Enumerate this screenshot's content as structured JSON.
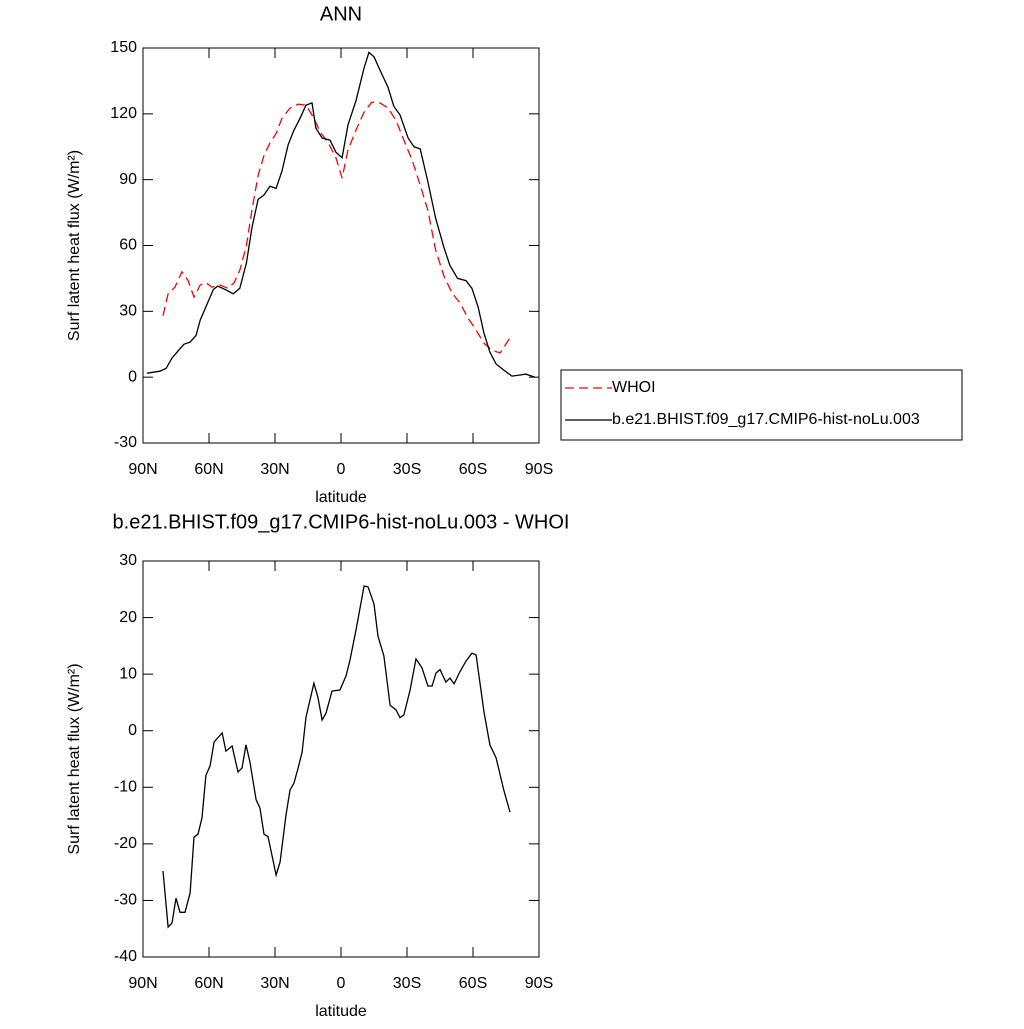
{
  "chart_data": [
    {
      "type": "line",
      "title": "ANN",
      "x_label": "latitude",
      "y_label": "Surf latent heat flux (W/m²)",
      "xlim": [
        90,
        -90
      ],
      "xticks": [
        {
          "value": 90,
          "label": "90N"
        },
        {
          "value": 60,
          "label": "60N"
        },
        {
          "value": 30,
          "label": "30N"
        },
        0,
        {
          "value": -30,
          "label": "30S"
        },
        {
          "value": -60,
          "label": "60S"
        },
        {
          "value": -90,
          "label": "90S"
        }
      ],
      "ylim": [
        -30,
        150
      ],
      "yticks": [
        -30,
        0,
        30,
        60,
        90,
        120,
        150
      ],
      "legend": "right",
      "series": [
        {
          "name": "WHOI",
          "color": "#ff0000",
          "dash": true,
          "x": [
            80.9,
            78.6,
            75.5,
            72.3,
            69.5,
            66.8,
            64,
            61.4,
            58.6,
            55,
            51.4,
            48.6,
            45.9,
            43,
            40.5,
            37.7,
            35,
            32.3,
            29.5,
            26.8,
            23.2,
            19.5,
            15.9,
            12.3,
            9.5,
            5.9,
            2.3,
            -0.5,
            -3.2,
            -6.8,
            -10.5,
            -14,
            -17.7,
            -21.4,
            -25,
            -28.6,
            -32.3,
            -36,
            -39.5,
            -43,
            -46.8,
            -50.5,
            -54,
            -57.7,
            -61.4,
            -65,
            -68.6,
            -72.3,
            -76.8
          ],
          "values": [
            28,
            38,
            41,
            48,
            44,
            36.5,
            42,
            43,
            41,
            42,
            40.5,
            43,
            49,
            60,
            76,
            92,
            101,
            106.7,
            111,
            118,
            122.6,
            124.4,
            124,
            118,
            111.7,
            107,
            100,
            90.7,
            103.5,
            112.6,
            120.8,
            125.3,
            125,
            122.6,
            117,
            108,
            99,
            87.5,
            76,
            58,
            46,
            38.3,
            34,
            27,
            21.4,
            15.5,
            12.3,
            11,
            18
          ]
        },
        {
          "name": "b.e21.BHIST.f09_g17.CMIP6-hist-noLu.003",
          "color": "#000000",
          "dash": false,
          "x": [
            88.2,
            82.3,
            79.5,
            76.8,
            74,
            71.4,
            68.6,
            65.9,
            64,
            61,
            58,
            56,
            52.7,
            49,
            46,
            43,
            40.5,
            37.7,
            35,
            32.3,
            29.5,
            26.8,
            24,
            21.4,
            18.6,
            15.9,
            13.2,
            11.4,
            8.6,
            5,
            2.3,
            -0.5,
            -3.2,
            -6.8,
            -10.5,
            -12.7,
            -15,
            -17.7,
            -21.4,
            -24,
            -26.8,
            -30.5,
            -33.2,
            -36,
            -39.5,
            -43,
            -46.8,
            -49.5,
            -53,
            -56.8,
            -59.5,
            -62.3,
            -65,
            -67.7,
            -70.5,
            -74,
            -77.7,
            -81.4,
            -84,
            -88.2
          ],
          "values": [
            1.8,
            2.7,
            4,
            8.7,
            12,
            15,
            16,
            19,
            26,
            33,
            40,
            41.5,
            40,
            38,
            40.5,
            52,
            68,
            81,
            83,
            87,
            86,
            94,
            106,
            112.5,
            118,
            124,
            125,
            113.5,
            109,
            108,
            102.5,
            100,
            115,
            126,
            141,
            148,
            146,
            140,
            132,
            123.5,
            119.5,
            109,
            105,
            104,
            89,
            72.5,
            59,
            51,
            45,
            44,
            40.5,
            32,
            20,
            11.4,
            6,
            3.2,
            0.5,
            1,
            1.4,
            0
          ]
        }
      ]
    },
    {
      "type": "line",
      "title": "b.e21.BHIST.f09_g17.CMIP6-hist-noLu.003 - WHOI",
      "x_label": "latitude",
      "y_label": "Surf latent heat flux (W/m²)",
      "xlim": [
        90,
        -90
      ],
      "xticks": [
        {
          "value": 90,
          "label": "90N"
        },
        {
          "value": 60,
          "label": "60N"
        },
        {
          "value": 30,
          "label": "30N"
        },
        0,
        {
          "value": -30,
          "label": "30S"
        },
        {
          "value": -60,
          "label": "60S"
        },
        {
          "value": -90,
          "label": "90S"
        }
      ],
      "ylim": [
        -40,
        30
      ],
      "yticks": [
        -40,
        -30,
        -20,
        -10,
        0,
        10,
        20,
        30
      ],
      "series": [
        {
          "color": "#000000",
          "dash": false,
          "x": [
            80.9,
            78.6,
            76.8,
            75,
            73.2,
            70.9,
            68.6,
            66.8,
            65,
            63.2,
            61.4,
            59.5,
            57.7,
            54,
            52.3,
            49.5,
            46.8,
            45,
            43.2,
            41.4,
            38.6,
            36.8,
            35,
            33.2,
            29.5,
            27.7,
            25,
            23.2,
            21.4,
            19.5,
            17.7,
            15.9,
            12.3,
            10.5,
            8.6,
            6.8,
            4.1,
            0.5,
            -2.3,
            -4.1,
            -6.8,
            -10.5,
            -12.3,
            -15,
            -16.8,
            -19.5,
            -22.3,
            -25,
            -26.8,
            -28.6,
            -31.4,
            -34.1,
            -36.8,
            -39.5,
            -41.4,
            -43.2,
            -45,
            -47.7,
            -49.5,
            -51.4,
            -54,
            -56.8,
            -59.5,
            -61.4,
            -65,
            -67.7,
            -70.5,
            -74,
            -76.8
          ],
          "values": [
            -24.8,
            -34.7,
            -34,
            -29.6,
            -32.1,
            -32.1,
            -28.7,
            -18.8,
            -18.3,
            -15.4,
            -7.9,
            -6.2,
            -2,
            -0.4,
            -3.6,
            -2.7,
            -7.3,
            -6.6,
            -2.5,
            -5.5,
            -12.2,
            -13.7,
            -18.3,
            -18.7,
            -25.5,
            -23.2,
            -14.9,
            -10.5,
            -9.3,
            -6.6,
            -3.8,
            2.4,
            8.4,
            5.9,
            1.9,
            3.1,
            7,
            7.2,
            9.7,
            12.5,
            17.8,
            25.6,
            25.4,
            22.4,
            16.7,
            13.2,
            4.5,
            3.7,
            2.3,
            2.8,
            7.2,
            12.7,
            11.1,
            7.9,
            7.9,
            10.2,
            10.8,
            8.6,
            9.3,
            8.3,
            10.4,
            12.3,
            13.7,
            13.4,
            3.3,
            -2.5,
            -4.8,
            -10.5,
            -14.4
          ]
        }
      ]
    }
  ]
}
